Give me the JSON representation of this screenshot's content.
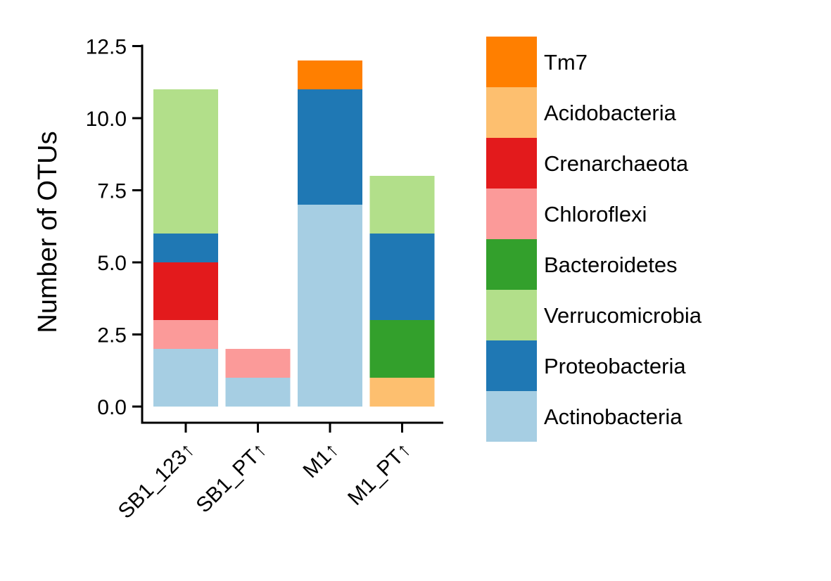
{
  "chart_data": {
    "type": "bar",
    "stacked": true,
    "title": "",
    "xlabel": "",
    "ylabel": "Number of OTUs",
    "ylim": [
      -0.6,
      12.5
    ],
    "yticks": [
      "0.0",
      "2.5",
      "5.0",
      "7.5",
      "10.0",
      "12.5"
    ],
    "ytick_values": [
      0,
      2.5,
      5,
      7.5,
      10,
      12.5
    ],
    "categories": [
      "SB1_123↑",
      "SB1_PT↑",
      "M1↑",
      "M1_PT↑"
    ],
    "series": [
      {
        "name": "Actinobacteria",
        "color": "#a6cee3",
        "values": [
          2,
          1,
          7,
          0
        ]
      },
      {
        "name": "Acidobacteria",
        "color": "#fdbf6f",
        "values": [
          0,
          0,
          0,
          1
        ]
      },
      {
        "name": "Bacteroidetes",
        "color": "#33a02c",
        "values": [
          0,
          0,
          0,
          2
        ]
      },
      {
        "name": "Chloroflexi",
        "color": "#fb9a99",
        "values": [
          1,
          1,
          0,
          0
        ]
      },
      {
        "name": "Crenarchaeota",
        "color": "#e31a1c",
        "values": [
          2,
          0,
          0,
          0
        ]
      },
      {
        "name": "Proteobacteria",
        "color": "#1f78b4",
        "values": [
          1,
          0,
          4,
          3
        ]
      },
      {
        "name": "Verrucomicrobia",
        "color": "#b2df8a",
        "values": [
          5,
          0,
          0,
          2
        ]
      },
      {
        "name": "Tm7",
        "color": "#ff7f00",
        "values": [
          0,
          0,
          1,
          0
        ]
      }
    ],
    "legend": {
      "placement": "right",
      "order": [
        "Tm7",
        "Acidobacteria",
        "Crenarchaeota",
        "Chloroflexi",
        "Bacteroidetes",
        "Verrucomicrobia",
        "Proteobacteria",
        "Actinobacteria"
      ]
    },
    "grid": false
  }
}
